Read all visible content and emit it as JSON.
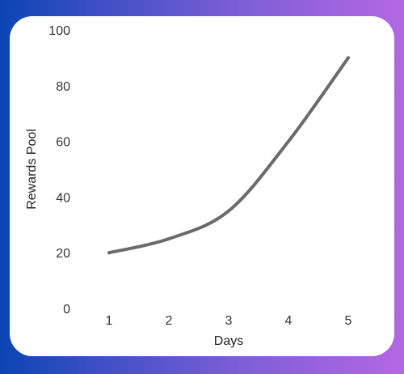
{
  "chart_data": {
    "type": "line",
    "title": "",
    "xlabel": "Days",
    "ylabel": "Rewards Pool",
    "x": [
      1,
      2,
      3,
      4,
      5
    ],
    "series": [
      {
        "values": [
          20,
          25,
          35,
          60,
          90
        ]
      }
    ],
    "ylim": [
      0,
      100
    ],
    "y_ticks": [
      "0",
      "20",
      "40",
      "60",
      "80",
      "100"
    ],
    "x_ticks": [
      "1",
      "2",
      "3",
      "4",
      "5"
    ],
    "grid": false,
    "line_color": "#6b6b6b"
  }
}
